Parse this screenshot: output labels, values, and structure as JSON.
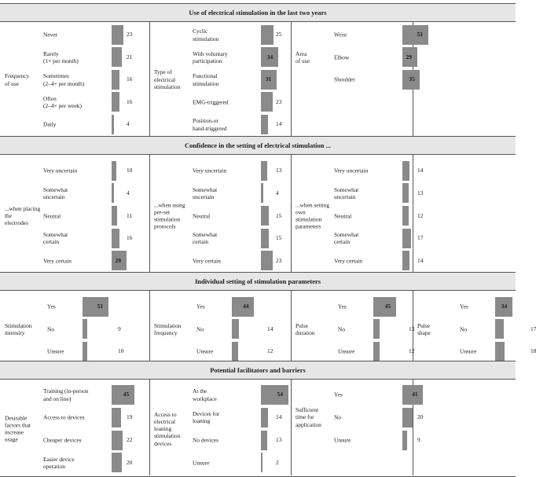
{
  "sections": [
    {
      "title": "Use of electrical stimulation in the last two years",
      "groups": [
        {
          "label": "Frequency\nof use",
          "items": [
            {
              "label": "Never",
              "value": 23
            },
            {
              "label": "Rarely\n(1× per month)",
              "value": 21
            },
            {
              "label": "Sometimes\n(2–4× per month)",
              "value": 16
            },
            {
              "label": "Often\n(2–4× per week)",
              "value": 16
            },
            {
              "label": "Daily",
              "value": 4
            }
          ]
        },
        {
          "label": "Type of\nelectrical\nstimulation",
          "items": [
            {
              "label": "Cyclic\nstimulation",
              "value": 25
            },
            {
              "label": "With voluntary\nparticipation",
              "value": 34
            },
            {
              "label": "Functional\nstimulation",
              "value": 31
            },
            {
              "label": "EMG-triggered",
              "value": 23
            },
            {
              "label": "Position-or\nhand-triggered",
              "value": 14
            }
          ]
        },
        {
          "label": "Area\nof use",
          "items": [
            {
              "label": "Wrist",
              "value": 51
            },
            {
              "label": "Elbow",
              "value": 29
            },
            {
              "label": "Shoulder",
              "value": 35
            }
          ]
        }
      ]
    },
    {
      "title": "Confidence in the setting of electrical stimulation ...",
      "groups": [
        {
          "label": "...when placing the\nelectrodes",
          "items": [
            {
              "label": "Very uncertain",
              "value": 10
            },
            {
              "label": "Somewhat\nuncertain",
              "value": 4
            },
            {
              "label": "Neutral",
              "value": 11
            },
            {
              "label": "Somewhat\ncertain",
              "value": 16
            },
            {
              "label": "Very certain",
              "value": 29
            }
          ]
        },
        {
          "label": "...when using\npre-set\nstimulation\nprotocols",
          "items": [
            {
              "label": "Very uncertain",
              "value": 13
            },
            {
              "label": "Somewhat\nuncertain",
              "value": 4
            },
            {
              "label": "Neutral",
              "value": 15
            },
            {
              "label": "Somewhat\ncertain",
              "value": 15
            },
            {
              "label": "Very certain",
              "value": 23
            }
          ]
        },
        {
          "label": "...when setting\nown\nstimulation\nparameters",
          "items": [
            {
              "label": "Very uncertain",
              "value": 14
            },
            {
              "label": "Somewhat\nuncertain",
              "value": 13
            },
            {
              "label": "Neutral",
              "value": 12
            },
            {
              "label": "Somewhat\ncertain",
              "value": 17
            },
            {
              "label": "Very certain",
              "value": 14
            }
          ]
        }
      ]
    },
    {
      "title": "Individual setting of stimulation parameters",
      "groups": [
        {
          "label": "Stimulation\nintensity",
          "items": [
            {
              "label": "Yes",
              "value": 51
            },
            {
              "label": "No",
              "value": 9
            },
            {
              "label": "Unsure",
              "value": 10
            }
          ]
        },
        {
          "label": "Stimulation\nfrequency",
          "items": [
            {
              "label": "Yes",
              "value": 44
            },
            {
              "label": "No",
              "value": 14
            },
            {
              "label": "Unsure",
              "value": 12
            }
          ]
        },
        {
          "label": "Pulse\nduration",
          "items": [
            {
              "label": "Yes",
              "value": 45
            },
            {
              "label": "No",
              "value": 13
            },
            {
              "label": "Unsure",
              "value": 12
            }
          ]
        },
        {
          "label": "Pulse\nshape",
          "items": [
            {
              "label": "Yes",
              "value": 34
            },
            {
              "label": "No",
              "value": 17
            },
            {
              "label": "Unsure",
              "value": 18
            }
          ]
        }
      ]
    },
    {
      "title": "Potential facilitators and barriers",
      "groups": [
        {
          "label": "Desirable\nfactors that\nincrease\nusage",
          "items": [
            {
              "label": "Training (in-person\nand on line)",
              "value": 45
            },
            {
              "label": "Access to devices",
              "value": 19
            },
            {
              "label": "Cheaper devices",
              "value": 22
            },
            {
              "label": "Easier device\noperation",
              "value": 20
            }
          ]
        },
        {
          "label": "Access to\nelectrical loaning\nstimulation\ndevices",
          "items": [
            {
              "label": "At the\nworkplace",
              "value": 54
            },
            {
              "label": "Devices for\nloaning",
              "value": 14
            },
            {
              "label": "No devices",
              "value": 13
            },
            {
              "label": "Unsure",
              "value": 2
            }
          ]
        },
        {
          "label": "Sufficient\ntime for\napplication",
          "items": [
            {
              "label": "Yes",
              "value": 41
            },
            {
              "label": "No",
              "value": 20
            },
            {
              "label": "Unsure",
              "value": 9
            }
          ]
        }
      ]
    }
  ],
  "colors": {
    "bar": "#8a8a8a",
    "header_bg": "#e6e6e6",
    "rule": "#555555"
  }
}
